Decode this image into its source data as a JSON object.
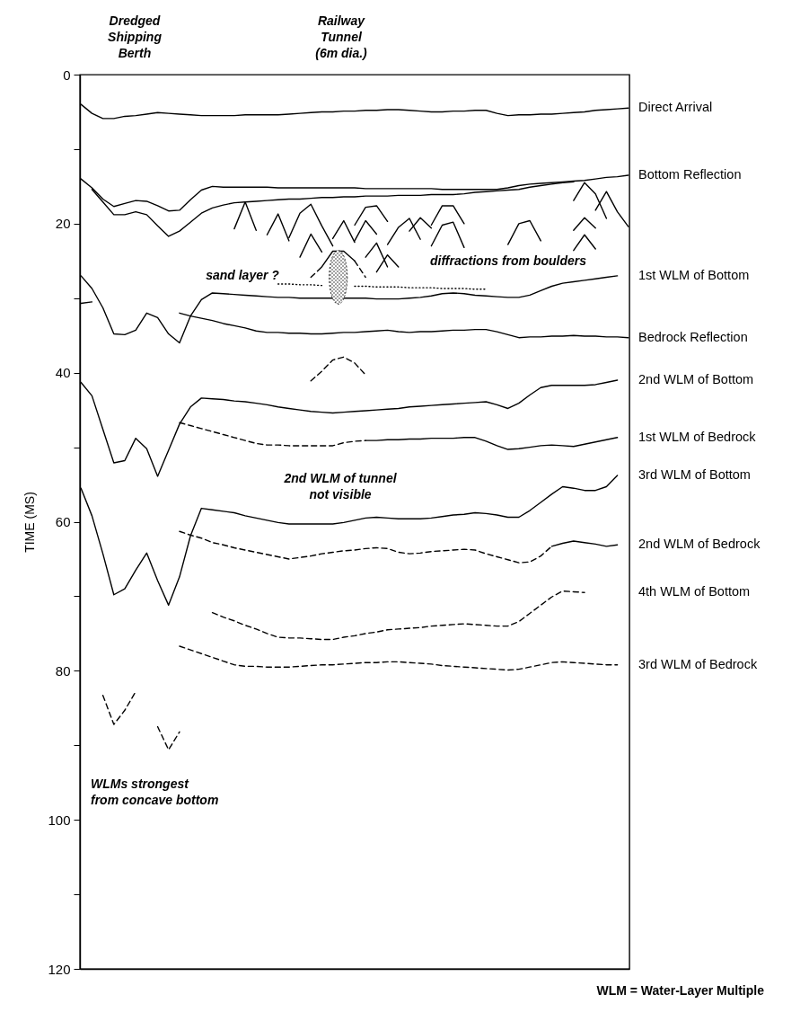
{
  "chart_data": {
    "type": "line",
    "ylabel": "TIME (MS)",
    "ylim": [
      120,
      0
    ],
    "categories": [
      null,
      null,
      null,
      null,
      null,
      null,
      null,
      null,
      null,
      null,
      null,
      null,
      null,
      null,
      null,
      null,
      null,
      null,
      null,
      null,
      null,
      null,
      null,
      null,
      null,
      null,
      null,
      null,
      null,
      null,
      null,
      null,
      null,
      null,
      null,
      null,
      null,
      null,
      null,
      null,
      null,
      null,
      null,
      null,
      null,
      null,
      null,
      null,
      null,
      null,
      null
    ],
    "yticks": [
      0,
      {
        "value": 10,
        "label": null
      },
      20,
      {
        "value": 30,
        "label": null
      },
      40,
      {
        "value": 50,
        "label": null
      },
      60,
      {
        "value": 70,
        "label": null
      },
      80,
      {
        "value": 90,
        "label": null
      },
      100,
      {
        "value": 110,
        "label": null
      },
      120
    ],
    "tick_labels": "y",
    "grid": false,
    "legend": false,
    "marker": "none",
    "series": [
      {
        "name": "Direct Arrival",
        "color": "#000000",
        "line_style": "solid",
        "values": [
          4.0,
          5.2,
          5.9,
          5.9,
          5.6,
          5.5,
          5.3,
          5.1,
          5.2,
          5.3,
          5.4,
          5.5,
          5.5,
          5.5,
          5.5,
          5.4,
          5.4,
          5.4,
          5.4,
          5.3,
          5.2,
          5.1,
          5.0,
          5.0,
          4.9,
          4.9,
          4.8,
          4.8,
          4.7,
          4.7,
          4.8,
          4.9,
          5.0,
          5.0,
          4.9,
          4.9,
          4.8,
          4.8,
          5.2,
          5.5,
          5.4,
          5.4,
          5.3,
          5.3,
          5.2,
          5.1,
          5.0,
          4.8,
          4.7,
          4.6,
          4.5
        ]
      },
      {
        "name": "Bottom Reflection",
        "color": "#000000",
        "line_style": "solid",
        "values": [
          14.0,
          15.2,
          16.7,
          17.7,
          17.3,
          16.9,
          17.0,
          17.6,
          18.3,
          18.2,
          16.8,
          15.5,
          15.0,
          15.1,
          15.1,
          15.1,
          15.1,
          15.1,
          15.2,
          15.2,
          15.2,
          15.2,
          15.2,
          15.2,
          15.2,
          15.2,
          15.3,
          15.3,
          15.3,
          15.3,
          15.3,
          15.3,
          15.3,
          15.4,
          15.4,
          15.4,
          15.4,
          15.4,
          15.4,
          15.2,
          14.9,
          14.7,
          14.6,
          14.5,
          14.4,
          14.3,
          14.2,
          14.0,
          13.8,
          13.7,
          13.5
        ]
      },
      {
        "color": "#000000",
        "line_style": "solid",
        "values": [
          null,
          15.4,
          17.1,
          18.8,
          18.8,
          18.4,
          18.8,
          20.3,
          21.7,
          21.0,
          19.8,
          18.6,
          17.9,
          17.5,
          17.2,
          17.1,
          17.0,
          16.9,
          16.8,
          16.7,
          16.7,
          16.6,
          16.5,
          16.5,
          16.4,
          16.4,
          16.3,
          16.3,
          16.3,
          16.2,
          16.2,
          16.2,
          16.1,
          16.1,
          16.1,
          16.0,
          15.8,
          15.7,
          15.6,
          15.5,
          15.4,
          15.1,
          14.9,
          14.7,
          14.5,
          14.4,
          null,
          null,
          null,
          null,
          null
        ]
      },
      {
        "color": "#000000",
        "line_style": "solid",
        "values": [
          null,
          null,
          null,
          null,
          null,
          null,
          null,
          null,
          null,
          null,
          null,
          null,
          null,
          null,
          20.7,
          17.1,
          20.9,
          null,
          null,
          null,
          24.5,
          21.4,
          23.8,
          null,
          null,
          22.3,
          19.6,
          21.4,
          null,
          null,
          21.0,
          19.2,
          20.6,
          null,
          null,
          null,
          null,
          null,
          null,
          22.8,
          20.0,
          19.6,
          22.3,
          null,
          null,
          20.9,
          19.2,
          20.6,
          null,
          null,
          null
        ]
      },
      {
        "color": "#000000",
        "line_style": "solid",
        "values": [
          null,
          null,
          null,
          null,
          null,
          null,
          null,
          null,
          null,
          null,
          null,
          null,
          null,
          null,
          null,
          null,
          null,
          21.5,
          18.7,
          22.3,
          null,
          null,
          null,
          22.0,
          19.6,
          22.5,
          null,
          26.5,
          24.2,
          25.8,
          null,
          null,
          20.2,
          17.6,
          17.6,
          20.0,
          null,
          null,
          null,
          null,
          null,
          null,
          null,
          null,
          null,
          16.9,
          14.5,
          16.0,
          19.3,
          null,
          null
        ]
      },
      {
        "color": "#000000",
        "line_style": "solid",
        "values": [
          null,
          null,
          null,
          null,
          null,
          null,
          null,
          null,
          null,
          null,
          null,
          null,
          null,
          null,
          null,
          null,
          null,
          null,
          null,
          21.9,
          18.6,
          17.4,
          20.3,
          23.0,
          null,
          20.2,
          17.8,
          17.6,
          19.7,
          null,
          null,
          null,
          23.0,
          20.2,
          19.8,
          23.2,
          null,
          null,
          null,
          null,
          null,
          null,
          null,
          null,
          null,
          23.6,
          21.5,
          23.4,
          null,
          null,
          null
        ]
      },
      {
        "color": "#000000",
        "line_style": "solid",
        "values": [
          null,
          null,
          null,
          null,
          null,
          null,
          null,
          null,
          null,
          null,
          null,
          null,
          null,
          null,
          null,
          null,
          null,
          null,
          null,
          null,
          null,
          null,
          null,
          null,
          null,
          null,
          24.5,
          22.6,
          25.8,
          null,
          null,
          null,
          null,
          null,
          null,
          null,
          null,
          null,
          null,
          null,
          null,
          null,
          null,
          null,
          null,
          null,
          null,
          18.2,
          15.7,
          18.4,
          20.4
        ]
      },
      {
        "color": "#000000",
        "line_style": "solid",
        "values": [
          null,
          null,
          null,
          null,
          null,
          null,
          null,
          null,
          null,
          null,
          null,
          null,
          null,
          null,
          null,
          null,
          null,
          null,
          null,
          null,
          null,
          null,
          null,
          null,
          null,
          null,
          null,
          null,
          22.8,
          20.5,
          19.3,
          22.1,
          null,
          null,
          null,
          null,
          null,
          null,
          null,
          null,
          null,
          null,
          null,
          null,
          null,
          null,
          null,
          null,
          null,
          null,
          null
        ]
      },
      {
        "color": "#000000",
        "line_style": "solid",
        "values": [
          null,
          null,
          null,
          null,
          null,
          null,
          null,
          null,
          null,
          null,
          null,
          null,
          null,
          null,
          null,
          null,
          null,
          null,
          null,
          null,
          null,
          null,
          25.8,
          23.7,
          23.7,
          25.0,
          null,
          null,
          null,
          null,
          null,
          null,
          null,
          null,
          null,
          null,
          null,
          null,
          null,
          null,
          null,
          null,
          null,
          null,
          null,
          null,
          null,
          null,
          null,
          null,
          null
        ]
      },
      {
        "color": "#000000",
        "line_style": "dashed",
        "values": [
          null,
          null,
          null,
          null,
          null,
          null,
          null,
          null,
          null,
          null,
          null,
          null,
          null,
          null,
          null,
          null,
          null,
          null,
          null,
          null,
          null,
          27.2,
          25.8,
          null,
          null,
          25.0,
          27.2,
          null,
          null,
          null,
          null,
          null,
          null,
          null,
          null,
          null,
          null,
          null,
          null,
          null,
          null,
          null,
          null,
          null,
          null,
          null,
          null,
          null,
          null,
          null,
          null
        ]
      },
      {
        "color": "#000000",
        "line_style": "dotted",
        "values": [
          null,
          null,
          null,
          null,
          null,
          null,
          null,
          null,
          null,
          null,
          null,
          null,
          null,
          null,
          null,
          null,
          null,
          null,
          28.1,
          28.1,
          28.2,
          28.2,
          28.3,
          null,
          null,
          28.4,
          28.4,
          28.5,
          28.5,
          28.5,
          28.6,
          28.6,
          28.6,
          28.7,
          28.7,
          28.7,
          28.8,
          28.8,
          null,
          null,
          null,
          null,
          null,
          null,
          null,
          null,
          null,
          null,
          null,
          null,
          null
        ]
      },
      {
        "name": "1st WLM of Bottom",
        "color": "#000000",
        "line_style": "solid",
        "values": [
          27.0,
          28.7,
          31.3,
          34.8,
          34.9,
          34.3,
          32.0,
          32.6,
          34.8,
          36.0,
          32.4,
          30.2,
          29.3,
          29.4,
          29.5,
          29.6,
          29.7,
          29.8,
          29.9,
          29.9,
          30.0,
          30.0,
          30.0,
          30.0,
          30.0,
          30.0,
          30.0,
          30.1,
          30.1,
          30.1,
          30.0,
          29.9,
          29.7,
          29.4,
          29.3,
          29.4,
          29.6,
          29.7,
          29.8,
          29.9,
          29.9,
          29.6,
          29.0,
          28.4,
          28.0,
          27.8,
          27.6,
          27.4,
          27.2,
          27.0,
          null
        ]
      },
      {
        "name": "Bedrock Reflection",
        "color": "#000000",
        "line_style": "solid",
        "values": [
          30.7,
          30.5,
          null,
          null,
          null,
          null,
          null,
          null,
          null,
          32.0,
          32.4,
          32.7,
          33.0,
          33.4,
          33.7,
          34.0,
          34.4,
          34.6,
          34.6,
          34.7,
          34.7,
          34.8,
          34.8,
          34.7,
          34.6,
          34.6,
          34.5,
          34.4,
          34.3,
          34.5,
          34.6,
          34.5,
          34.5,
          34.4,
          34.3,
          34.3,
          34.2,
          34.2,
          34.5,
          34.9,
          35.3,
          35.2,
          35.2,
          35.1,
          35.1,
          35.0,
          35.1,
          35.1,
          35.2,
          35.2,
          35.3
        ]
      },
      {
        "color": "#000000",
        "line_style": "dashed",
        "values": [
          null,
          null,
          83.3,
          87.2,
          85.3,
          82.8,
          null,
          87.5,
          90.6,
          88.2,
          null,
          null,
          null,
          null,
          null,
          null,
          null,
          null,
          null,
          null,
          null,
          41.1,
          39.8,
          38.3,
          37.9,
          38.7,
          40.3,
          null,
          null,
          null,
          null,
          null,
          null,
          null,
          null,
          null,
          null,
          null,
          null,
          null,
          null,
          null,
          null,
          null,
          null,
          null,
          null,
          null,
          null,
          null,
          null
        ]
      },
      {
        "name": "2nd WLM of Bottom",
        "color": "#000000",
        "line_style": "solid",
        "values": [
          41.3,
          43.1,
          47.6,
          52.1,
          51.8,
          48.8,
          50.2,
          53.9,
          50.4,
          46.9,
          44.6,
          43.4,
          43.5,
          43.6,
          43.8,
          43.9,
          44.1,
          44.3,
          44.6,
          44.8,
          45.0,
          45.2,
          45.3,
          45.4,
          45.3,
          45.2,
          45.1,
          45.0,
          44.9,
          44.8,
          44.6,
          44.5,
          44.4,
          44.3,
          44.2,
          44.1,
          44.0,
          43.9,
          44.3,
          44.8,
          44.1,
          43.0,
          42.0,
          41.7,
          41.7,
          41.7,
          41.7,
          41.6,
          41.3,
          41.0,
          null
        ]
      },
      {
        "color": "#000000",
        "line_style": "dashed",
        "values": [
          null,
          null,
          null,
          null,
          null,
          null,
          null,
          null,
          null,
          46.7,
          47.1,
          47.5,
          47.9,
          48.3,
          48.7,
          49.1,
          49.5,
          49.7,
          49.7,
          49.8,
          49.8,
          49.8,
          49.8,
          49.8,
          49.4,
          49.2,
          49.1,
          null,
          null,
          null,
          null,
          null,
          null,
          null,
          null,
          null,
          null,
          null,
          null,
          null,
          null,
          null,
          null,
          null,
          null,
          null,
          null,
          null,
          null,
          null,
          null
        ]
      },
      {
        "name": "1st WLM of Bedrock",
        "color": "#000000",
        "line_style": "solid",
        "values": [
          null,
          null,
          null,
          null,
          null,
          null,
          null,
          null,
          null,
          null,
          null,
          null,
          null,
          null,
          null,
          null,
          null,
          null,
          null,
          null,
          null,
          null,
          null,
          null,
          null,
          null,
          49.1,
          49.1,
          49.0,
          49.0,
          48.9,
          48.9,
          48.8,
          48.8,
          48.8,
          48.7,
          48.7,
          49.2,
          49.8,
          50.3,
          50.2,
          50.0,
          49.8,
          49.7,
          49.8,
          49.9,
          49.6,
          49.3,
          49.0,
          48.7,
          null
        ]
      },
      {
        "name": "3rd WLM of Bottom",
        "color": "#000000",
        "line_style": "solid",
        "values": [
          55.5,
          59.2,
          64.3,
          69.8,
          69.0,
          66.5,
          64.2,
          67.9,
          71.2,
          67.4,
          61.9,
          58.2,
          58.4,
          58.6,
          58.8,
          59.2,
          59.5,
          59.8,
          60.1,
          60.3,
          60.3,
          60.3,
          60.3,
          60.3,
          60.1,
          59.8,
          59.5,
          59.4,
          59.5,
          59.6,
          59.6,
          59.6,
          59.5,
          59.3,
          59.1,
          59.0,
          58.8,
          58.9,
          59.1,
          59.4,
          59.4,
          58.5,
          57.4,
          56.3,
          55.3,
          55.5,
          55.8,
          55.8,
          55.3,
          53.8,
          null
        ]
      },
      {
        "color": "#000000",
        "line_style": "dashed",
        "values": [
          null,
          null,
          null,
          null,
          null,
          null,
          null,
          null,
          null,
          61.3,
          61.8,
          62.2,
          62.8,
          63.1,
          63.5,
          63.8,
          64.1,
          64.4,
          64.7,
          65.0,
          64.8,
          64.6,
          64.3,
          64.1,
          63.9,
          63.8,
          63.6,
          63.5,
          63.6,
          64.1,
          64.3,
          64.2,
          64.0,
          63.9,
          63.8,
          63.7,
          63.8,
          64.3,
          64.7,
          65.1,
          65.5,
          65.4,
          64.6,
          63.3,
          null,
          null,
          null,
          null,
          null,
          null,
          null
        ]
      },
      {
        "name": "2nd WLM of Bedrock",
        "color": "#000000",
        "line_style": "solid",
        "values": [
          null,
          null,
          null,
          null,
          null,
          null,
          null,
          null,
          null,
          null,
          null,
          null,
          null,
          null,
          null,
          null,
          null,
          null,
          null,
          null,
          null,
          null,
          null,
          null,
          null,
          null,
          null,
          null,
          null,
          null,
          null,
          null,
          null,
          null,
          null,
          null,
          null,
          null,
          null,
          null,
          null,
          null,
          null,
          63.3,
          62.9,
          62.6,
          62.8,
          63.0,
          63.3,
          63.1,
          null
        ]
      },
      {
        "name": "4th WLM of Bottom",
        "color": "#000000",
        "line_style": "dashed",
        "values": [
          null,
          null,
          null,
          null,
          null,
          null,
          null,
          null,
          null,
          null,
          null,
          null,
          72.2,
          72.8,
          73.3,
          73.9,
          74.4,
          75.0,
          75.5,
          75.6,
          75.6,
          75.7,
          75.8,
          75.8,
          75.5,
          75.3,
          75.0,
          74.8,
          74.5,
          74.4,
          74.3,
          74.2,
          74.0,
          73.9,
          73.8,
          73.7,
          73.8,
          73.9,
          74.0,
          74.0,
          73.4,
          72.3,
          71.2,
          70.1,
          69.3,
          69.4,
          69.5,
          null,
          null,
          null,
          null
        ]
      },
      {
        "name": "3rd WLM of Bedrock",
        "color": "#000000",
        "line_style": "dashed",
        "values": [
          null,
          null,
          null,
          null,
          null,
          null,
          null,
          null,
          null,
          76.7,
          77.2,
          77.7,
          78.2,
          78.7,
          79.2,
          79.4,
          79.4,
          79.5,
          79.5,
          79.5,
          79.4,
          79.3,
          79.2,
          79.2,
          79.1,
          79.0,
          78.9,
          78.9,
          78.8,
          78.8,
          78.9,
          79.0,
          79.1,
          79.3,
          79.4,
          79.5,
          79.6,
          79.7,
          79.8,
          79.9,
          79.8,
          79.5,
          79.2,
          78.9,
          78.8,
          78.9,
          79.0,
          79.1,
          79.2,
          79.2,
          null
        ]
      }
    ],
    "annotations": [
      "Dredged\nShipping\nBerth",
      "Railway\nTunnel\n(6m dia.)",
      "sand layer ?",
      "diffractions from boulders",
      "2nd WLM of tunnel\nnot visible",
      "WLMs strongest\nfrom concave bottom",
      "WLM = Water-Layer Multiple"
    ]
  }
}
